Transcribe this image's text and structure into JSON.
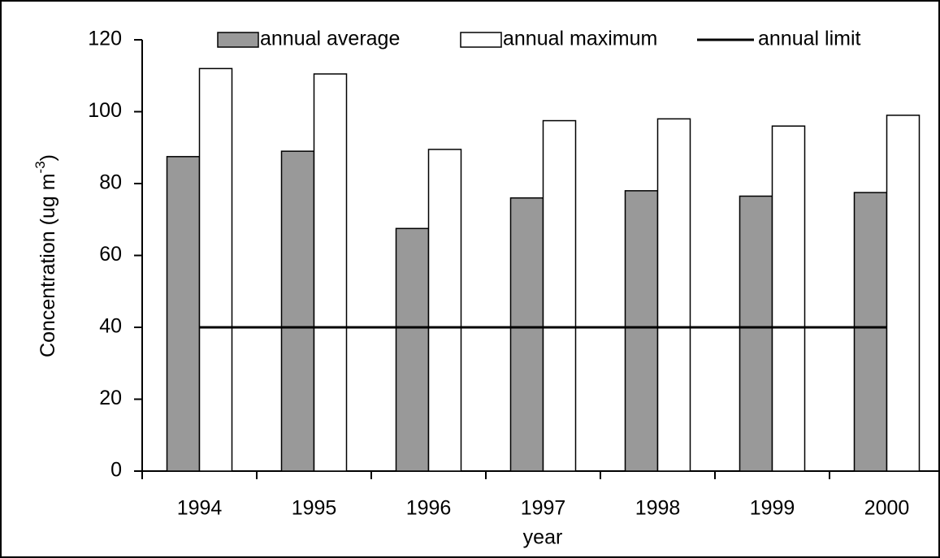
{
  "chart_data": {
    "type": "bar",
    "x_label": "year",
    "y_label": {
      "text": "Concentration (ug m",
      "superscript": "-3",
      "suffix": ")"
    },
    "categories": [
      "1994",
      "1995",
      "1996",
      "1997",
      "1998",
      "1999",
      "2000"
    ],
    "series": [
      {
        "name": "annual average",
        "color": "#999999",
        "values": [
          87.5,
          89,
          67.5,
          76,
          78,
          76.5,
          77.5
        ]
      },
      {
        "name": "annual maximum",
        "color": "#ffffff",
        "values": [
          112,
          110.5,
          89.5,
          97.5,
          98,
          96,
          99
        ]
      },
      {
        "name": "annual limit",
        "type": "line",
        "color": "#000000",
        "values": [
          40,
          40,
          40,
          40,
          40,
          40,
          40
        ]
      }
    ],
    "ylim": [
      0,
      120
    ],
    "yticks": [
      0,
      20,
      40,
      60,
      80,
      100,
      120
    ],
    "grid": false,
    "legend": "top"
  }
}
